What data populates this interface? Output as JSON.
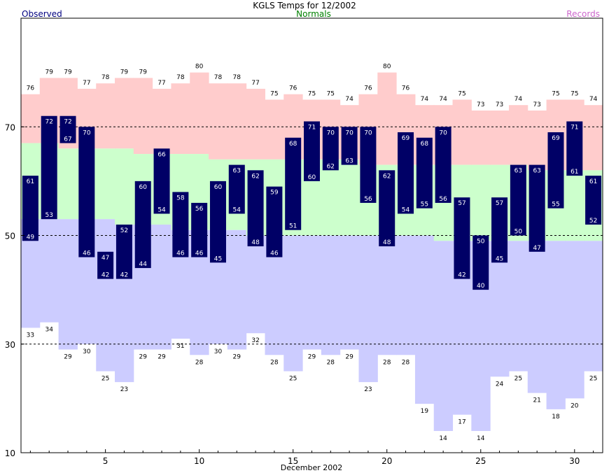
{
  "chart_data": {
    "type": "bar",
    "title": "KGLS Temps for 12/2002",
    "xlabel": "December 2002",
    "ylabel": "",
    "legend": {
      "observed": "Observed",
      "normals": "Normals",
      "records": "Records"
    },
    "colors": {
      "observed": "#000066",
      "observed_label": "#000080",
      "normals": "#ccffcc",
      "normals_label": "#008000",
      "record_high": "#ffcccc",
      "record_low": "#ccccff",
      "records_label": "#cc66cc"
    },
    "ylim": [
      10,
      90
    ],
    "xlim": [
      0.5,
      31.5
    ],
    "y_ticks": [
      10,
      30,
      50,
      70
    ],
    "x_ticks": [
      5,
      10,
      15,
      20,
      25,
      30
    ],
    "dashed_lines": [
      30,
      50,
      70
    ],
    "days": [
      1,
      2,
      3,
      4,
      5,
      6,
      7,
      8,
      9,
      10,
      11,
      12,
      13,
      14,
      15,
      16,
      17,
      18,
      19,
      20,
      21,
      22,
      23,
      24,
      25,
      26,
      27,
      28,
      29,
      30,
      31
    ],
    "obs_high": [
      61,
      72,
      72,
      70,
      47,
      52,
      60,
      66,
      58,
      56,
      60,
      63,
      62,
      59,
      68,
      71,
      70,
      70,
      70,
      62,
      69,
      68,
      70,
      57,
      50,
      57,
      63,
      63,
      69,
      71,
      61
    ],
    "obs_low": [
      49,
      53,
      67,
      46,
      42,
      42,
      44,
      54,
      46,
      46,
      45,
      54,
      48,
      46,
      51,
      60,
      62,
      63,
      56,
      48,
      54,
      55,
      56,
      42,
      40,
      45,
      50,
      47,
      55,
      61,
      52
    ],
    "normal_high": [
      67,
      67,
      66,
      66,
      66,
      66,
      65,
      65,
      65,
      65,
      64,
      64,
      64,
      64,
      64,
      64,
      64,
      64,
      63,
      63,
      63,
      63,
      63,
      63,
      63,
      63,
      63,
      62,
      62,
      62,
      62
    ],
    "normal_low": [
      53,
      53,
      53,
      53,
      53,
      52,
      52,
      52,
      51,
      51,
      51,
      51,
      50,
      50,
      50,
      50,
      50,
      50,
      50,
      50,
      50,
      50,
      49,
      49,
      49,
      49,
      49,
      49,
      49,
      49,
      49
    ],
    "record_high": [
      76,
      79,
      79,
      77,
      78,
      79,
      79,
      77,
      78,
      80,
      78,
      78,
      77,
      75,
      76,
      75,
      75,
      74,
      76,
      80,
      76,
      74,
      74,
      75,
      73,
      73,
      74,
      73,
      75,
      75,
      74
    ],
    "record_low": [
      33,
      34,
      29,
      30,
      25,
      23,
      29,
      29,
      31,
      28,
      30,
      29,
      32,
      28,
      25,
      29,
      28,
      29,
      23,
      28,
      28,
      19,
      14,
      17,
      14,
      24,
      25,
      21,
      18,
      20,
      25
    ]
  }
}
